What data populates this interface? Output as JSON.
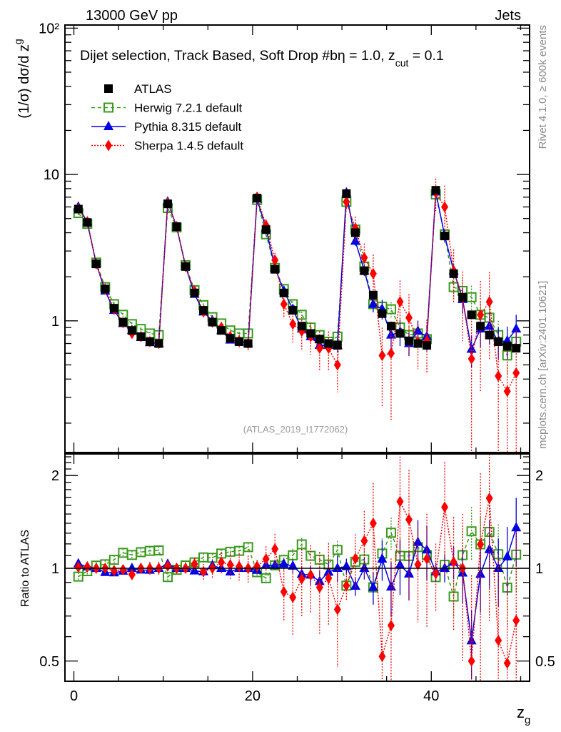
{
  "chart_data": {
    "type": "scatter",
    "header_left": "13000 GeV pp",
    "header_right": "Jets",
    "title": "Dijet selection, Track Based, Soft Drop #bη = 1.0, z",
    "title_sub": "cut",
    "title_tail": " = 0.1",
    "ylabel": "(1/σ) dσ/d z",
    "ylabel_sub": "g",
    "ratio_ylabel": "Ratio to ATLAS",
    "xlabel": "z",
    "xlabel_sub": "g",
    "watermark": "(ATLAS_2019_I1772062)",
    "side_text_top": "Rivet 4.1.0, ≥ 600k events",
    "side_text_bottom": "mcplots.cern.ch [arXiv:2401.10621]",
    "xlim": [
      -1.0,
      51.0
    ],
    "ylim": [
      0.126,
      105
    ],
    "ratio_ylim": [
      0.43,
      2.35
    ],
    "y_scale": "log",
    "x_ticks": [
      0,
      20,
      40
    ],
    "y_ticks": [
      {
        "v": 1,
        "label": "1"
      },
      {
        "v": 10,
        "label": "10"
      },
      {
        "v": 100,
        "label": "10²"
      }
    ],
    "ratio_ticks": [
      {
        "v": 0.5,
        "label": "0.5"
      },
      {
        "v": 1,
        "label": "1"
      },
      {
        "v": 2,
        "label": "2"
      }
    ],
    "legend": [
      {
        "name": "ATLAS",
        "color": "#000000",
        "marker": "square-filled",
        "line": "none"
      },
      {
        "name": "Herwig 7.2.1 default",
        "color": "#3a9a1e",
        "marker": "square-open",
        "line": "dashed"
      },
      {
        "name": "Pythia 8.315 default",
        "color": "#0000e6",
        "marker": "triangle",
        "line": "solid"
      },
      {
        "name": "Sherpa 1.4.5 default",
        "color": "#ff0000",
        "marker": "diamond",
        "line": "dotted"
      }
    ],
    "legend_position": "top-left",
    "x": [
      0.5,
      1.5,
      2.5,
      3.5,
      4.5,
      5.5,
      6.5,
      7.5,
      8.5,
      9.5,
      10.5,
      11.5,
      12.5,
      13.5,
      14.5,
      15.5,
      16.5,
      17.5,
      18.5,
      19.5,
      20.5,
      21.5,
      22.5,
      23.5,
      24.5,
      25.5,
      26.5,
      27.5,
      28.5,
      29.5,
      30.5,
      31.5,
      32.5,
      33.5,
      34.5,
      35.5,
      36.5,
      37.5,
      38.5,
      39.5,
      40.5,
      41.5,
      42.5,
      43.5,
      44.5,
      45.5,
      46.5,
      47.5,
      48.5,
      49.5
    ],
    "series": [
      {
        "name": "ATLAS",
        "values": [
          5.8,
          4.7,
          2.45,
          1.65,
          1.22,
          0.98,
          0.86,
          0.78,
          0.72,
          0.7,
          6.3,
          4.4,
          2.35,
          1.55,
          1.18,
          0.98,
          0.86,
          0.76,
          0.72,
          0.7,
          6.9,
          4.2,
          2.25,
          1.55,
          1.18,
          0.92,
          0.82,
          0.75,
          0.7,
          0.68,
          7.4,
          4.0,
          2.2,
          1.5,
          1.12,
          0.92,
          0.82,
          0.73,
          0.7,
          0.68,
          7.8,
          3.8,
          2.1,
          1.45,
          1.1,
          0.92,
          0.8,
          0.72,
          0.67,
          0.65
        ],
        "err": [
          0.02,
          0.02,
          0.02,
          0.02,
          0.02,
          0.02,
          0.02,
          0.02,
          0.02,
          0.02,
          0.02,
          0.02,
          0.02,
          0.02,
          0.02,
          0.02,
          0.02,
          0.02,
          0.02,
          0.02,
          0.02,
          0.02,
          0.02,
          0.02,
          0.02,
          0.02,
          0.02,
          0.02,
          0.02,
          0.02,
          0.02,
          0.02,
          0.02,
          0.02,
          0.02,
          0.02,
          0.02,
          0.02,
          0.02,
          0.02,
          0.02,
          0.02,
          0.02,
          0.02,
          0.02,
          0.02,
          0.02,
          0.02,
          0.02,
          0.02
        ]
      },
      {
        "name": "Herwig 7.2.1 default",
        "values": [
          5.45,
          4.6,
          2.5,
          1.7,
          1.3,
          1.1,
          0.95,
          0.88,
          0.82,
          0.8,
          5.9,
          4.35,
          2.4,
          1.62,
          1.28,
          1.06,
          0.96,
          0.86,
          0.82,
          0.82,
          6.7,
          3.9,
          2.3,
          1.65,
          1.3,
          1.1,
          0.9,
          0.8,
          0.72,
          0.78,
          6.5,
          4.2,
          2.35,
          1.3,
          1.25,
          1.2,
          0.9,
          0.8,
          0.82,
          0.75,
          7.3,
          3.9,
          1.7,
          1.6,
          1.45,
          1.1,
          1.05,
          0.8,
          0.58,
          0.72
        ],
        "err": [
          0.03,
          0.03,
          0.03,
          0.03,
          0.03,
          0.03,
          0.03,
          0.03,
          0.03,
          0.03,
          0.03,
          0.03,
          0.03,
          0.03,
          0.03,
          0.03,
          0.03,
          0.03,
          0.03,
          0.03,
          0.03,
          0.03,
          0.04,
          0.04,
          0.05,
          0.05,
          0.06,
          0.06,
          0.07,
          0.07,
          0.04,
          0.06,
          0.08,
          0.12,
          0.12,
          0.12,
          0.14,
          0.14,
          0.15,
          0.15,
          0.06,
          0.1,
          0.15,
          0.2,
          0.2,
          0.22,
          0.22,
          0.25,
          0.25,
          0.25
        ]
      },
      {
        "name": "Pythia 8.315 default",
        "values": [
          6.0,
          4.75,
          2.45,
          1.6,
          1.18,
          0.96,
          0.86,
          0.77,
          0.71,
          0.7,
          6.5,
          4.4,
          2.35,
          1.52,
          1.15,
          1.0,
          0.86,
          0.74,
          0.72,
          0.7,
          6.8,
          4.3,
          2.3,
          1.6,
          1.2,
          0.88,
          0.78,
          0.68,
          0.68,
          0.68,
          7.5,
          3.5,
          2.2,
          1.3,
          1.2,
          0.8,
          0.84,
          0.7,
          0.85,
          0.78,
          7.6,
          3.8,
          2.2,
          1.4,
          0.64,
          0.88,
          0.92,
          0.72,
          0.73,
          0.88
        ],
        "err": [
          0.02,
          0.02,
          0.02,
          0.02,
          0.02,
          0.02,
          0.02,
          0.02,
          0.02,
          0.02,
          0.02,
          0.02,
          0.02,
          0.02,
          0.02,
          0.02,
          0.02,
          0.02,
          0.02,
          0.02,
          0.02,
          0.03,
          0.03,
          0.04,
          0.05,
          0.06,
          0.07,
          0.08,
          0.09,
          0.1,
          0.06,
          0.07,
          0.08,
          0.12,
          0.15,
          0.2,
          0.2,
          0.18,
          0.18,
          0.2,
          0.07,
          0.1,
          0.12,
          0.2,
          0.25,
          0.25,
          0.25,
          0.25,
          0.25,
          0.25
        ]
      },
      {
        "name": "Sherpa 1.4.5 default",
        "values": [
          5.85,
          4.75,
          2.45,
          1.65,
          1.2,
          0.97,
          0.82,
          0.78,
          0.72,
          0.7,
          6.4,
          4.4,
          2.35,
          1.6,
          1.15,
          0.98,
          0.9,
          0.78,
          0.73,
          0.7,
          7.0,
          4.5,
          2.6,
          1.3,
          0.95,
          0.85,
          0.78,
          0.65,
          0.65,
          0.5,
          6.5,
          4.3,
          2.7,
          2.1,
          0.58,
          0.6,
          1.35,
          1.05,
          0.72,
          0.73,
          7.5,
          6.0,
          2.2,
          1.45,
          0.55,
          1.1,
          1.35,
          0.42,
          0.33,
          0.44
        ],
        "err": [
          0.03,
          0.03,
          0.03,
          0.03,
          0.03,
          0.03,
          0.04,
          0.04,
          0.05,
          0.05,
          0.03,
          0.04,
          0.04,
          0.05,
          0.06,
          0.07,
          0.08,
          0.1,
          0.1,
          0.1,
          0.05,
          0.1,
          0.12,
          0.2,
          0.25,
          0.25,
          0.25,
          0.3,
          0.3,
          0.35,
          0.1,
          0.2,
          0.25,
          0.35,
          0.55,
          0.65,
          0.4,
          0.45,
          0.35,
          0.4,
          0.25,
          0.4,
          0.4,
          0.5,
          0.9,
          0.7,
          0.6,
          0.9,
          0.9,
          0.95
        ]
      }
    ]
  }
}
